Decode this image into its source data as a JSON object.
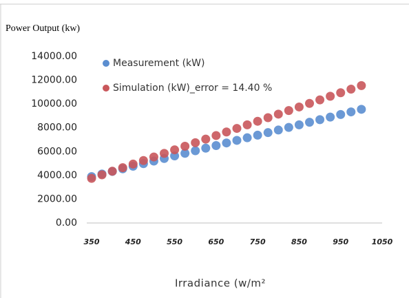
{
  "chart_data": {
    "type": "scatter",
    "title": "Power Output (kw)",
    "x_label": "Irradiance (w/m²",
    "x": [
      350,
      375,
      400,
      425,
      450,
      475,
      500,
      525,
      550,
      575,
      600,
      625,
      650,
      675,
      700,
      725,
      750,
      775,
      800,
      825,
      850,
      875,
      900,
      925,
      950,
      975,
      1000
    ],
    "series": [
      {
        "name": "Measurement (kW)",
        "color": "#5b8ed0",
        "values": [
          3900,
          4118,
          4335,
          4553,
          4770,
          4988,
          5205,
          5423,
          5640,
          5858,
          6075,
          6293,
          6510,
          6728,
          6945,
          7163,
          7380,
          7598,
          7815,
          8033,
          8250,
          8468,
          8685,
          8903,
          9120,
          9338,
          9555
        ]
      },
      {
        "name": "Simulation (kW)_error = 14.40 %",
        "color": "#c9575b",
        "values": [
          3750,
          4050,
          4350,
          4650,
          4950,
          5250,
          5550,
          5850,
          6150,
          6450,
          6750,
          7050,
          7350,
          7650,
          7950,
          8250,
          8550,
          8850,
          9150,
          9450,
          9750,
          10050,
          10350,
          10650,
          10950,
          11250,
          11550
        ]
      }
    ],
    "xlim": [
      350,
      1050
    ],
    "xticks": [
      350,
      450,
      550,
      650,
      750,
      850,
      950,
      1050
    ],
    "ylim": [
      0,
      14000
    ],
    "yticks": [
      {
        "value": 0,
        "label": "0.00"
      },
      {
        "value": 2000,
        "label": "2000.00"
      },
      {
        "value": 4000,
        "label": "4000.00"
      },
      {
        "value": 6000,
        "label": "6000.00"
      },
      {
        "value": 8000,
        "label": "8000.00"
      },
      {
        "value": 10000,
        "label": "10000.00"
      },
      {
        "value": 12000,
        "label": "12000.00"
      },
      {
        "value": 14000,
        "label": "14000.00"
      }
    ],
    "legend": "top-left"
  }
}
